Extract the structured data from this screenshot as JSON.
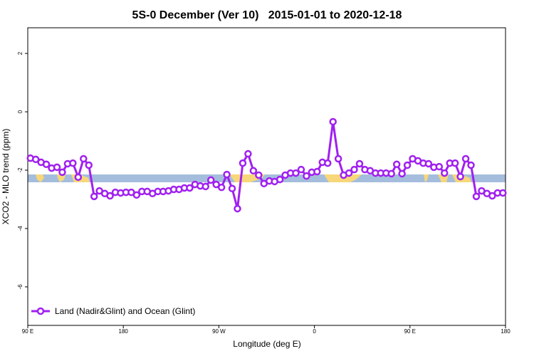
{
  "chart_data": {
    "type": "line",
    "title": "5S-0 December (Ver 10)   2015-01-01 to 2020-12-18",
    "x_label": "Longitude (deg E)",
    "y_label": "XCO2 - MLO trend (ppm)",
    "xlim": [
      90,
      540
    ],
    "ylim": [
      -7.32,
      2.88
    ],
    "xticks": [
      {
        "value": 90,
        "label": "90 E"
      },
      180,
      {
        "value": 270,
        "label": "90 W"
      },
      {
        "value": 360,
        "label": "0"
      },
      {
        "value": 450,
        "label": "90 E"
      },
      {
        "value": 540,
        "label": "180"
      }
    ],
    "yticks": [
      -6,
      -4,
      -2,
      0,
      2
    ],
    "legend": "bottom-left",
    "x": [
      92.5,
      97.5,
      102.5,
      107.5,
      112.5,
      117.5,
      122.5,
      127.5,
      132.5,
      137.5,
      142.5,
      147.5,
      152.5,
      157.5,
      162.5,
      167.5,
      172.5,
      177.5,
      182.5,
      187.5,
      192.5,
      197.5,
      202.5,
      207.5,
      212.5,
      217.5,
      222.5,
      227.5,
      232.5,
      237.5,
      242.5,
      247.5,
      252.5,
      257.5,
      262.5,
      267.5,
      272.5,
      277.5,
      282.5,
      287.5,
      292.5,
      297.5,
      302.5,
      307.5,
      312.5,
      317.5,
      322.5,
      327.5,
      332.5,
      337.5,
      342.5,
      347.5,
      352.5,
      357.5,
      362.5,
      367.5,
      372.5,
      377.5,
      382.5,
      387.5,
      392.5,
      397.5,
      402.5,
      407.5,
      412.5,
      417.5,
      422.5,
      427.5,
      432.5,
      437.5,
      442.5,
      447.5,
      452.5,
      457.5,
      462.5,
      467.5,
      472.5,
      477.5,
      482.5,
      487.5,
      492.5,
      497.5,
      502.5,
      507.5,
      512.5,
      517.5,
      522.5,
      527.5,
      532.5,
      537.5
    ],
    "series": [
      {
        "name": "Land (Nadir&Glint) and Ocean (Glint)",
        "color": "#a020f0",
        "values": [
          -1.59,
          -1.63,
          -1.73,
          -1.8,
          -1.93,
          -1.9,
          -2.07,
          -1.78,
          -1.76,
          -2.24,
          -1.61,
          -1.83,
          -2.9,
          -2.71,
          -2.8,
          -2.88,
          -2.76,
          -2.78,
          -2.76,
          -2.76,
          -2.85,
          -2.73,
          -2.73,
          -2.8,
          -2.73,
          -2.73,
          -2.71,
          -2.66,
          -2.66,
          -2.61,
          -2.61,
          -2.49,
          -2.54,
          -2.56,
          -2.34,
          -2.49,
          -2.59,
          -2.15,
          -2.63,
          -3.32,
          -1.76,
          -1.44,
          -2.02,
          -2.17,
          -2.46,
          -2.37,
          -2.39,
          -2.32,
          -2.17,
          -2.1,
          -2.1,
          -1.98,
          -2.2,
          -2.07,
          -2.05,
          -1.73,
          -1.76,
          -0.34,
          -1.61,
          -2.17,
          -2.1,
          -1.98,
          -1.78,
          -1.98,
          -2.02,
          -2.1,
          -2.1,
          -2.1,
          -2.12,
          -1.8,
          -2.12,
          -1.83,
          -1.61,
          -1.68,
          -1.76,
          -1.78,
          -1.9,
          -1.88,
          -2.1,
          -1.76,
          -1.76,
          -2.22,
          -1.61,
          -1.83,
          -2.9,
          -2.71,
          -2.8,
          -2.88,
          -2.78,
          -2.78
        ]
      }
    ]
  }
}
